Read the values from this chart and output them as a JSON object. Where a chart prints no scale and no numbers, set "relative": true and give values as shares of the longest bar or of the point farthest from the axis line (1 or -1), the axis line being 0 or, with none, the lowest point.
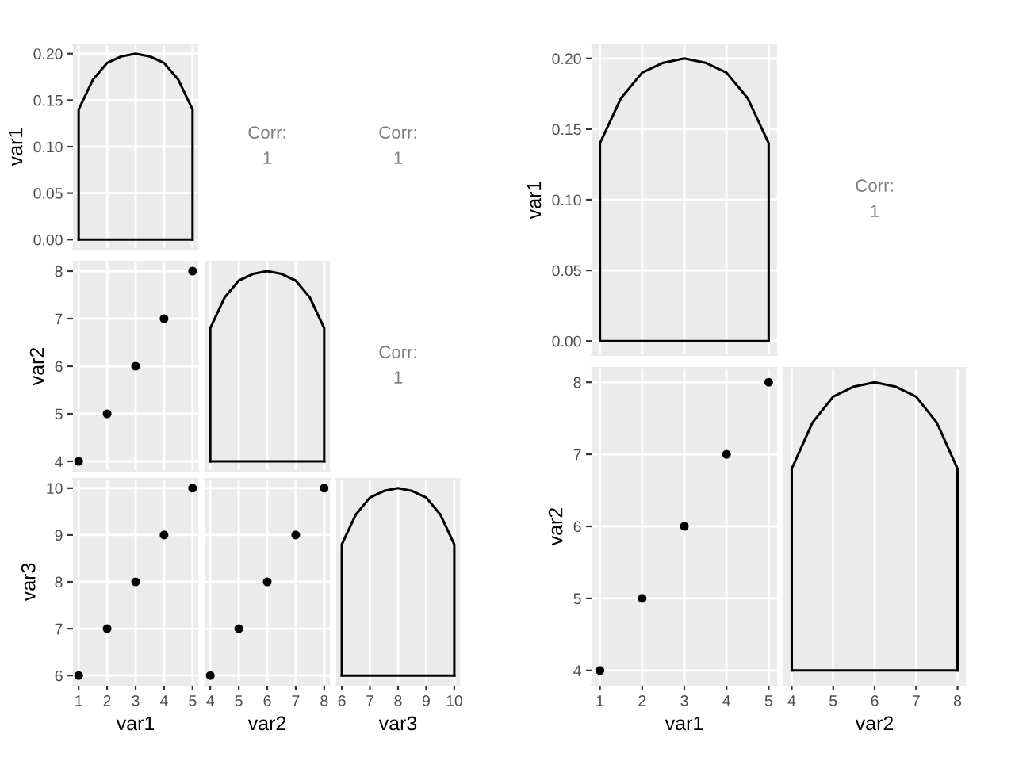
{
  "chart_data": [
    {
      "type": "line",
      "ylabel": "var1",
      "xlim": [
        0.8,
        5.2
      ],
      "xticks": [
        1,
        2,
        3,
        4,
        5
      ],
      "ylim": [
        -0.01,
        0.21
      ],
      "yticks": [
        {
          "value": 0,
          "label": "0.00"
        },
        {
          "value": 0.05,
          "label": "0.05"
        },
        {
          "value": 0.1,
          "label": "0.10"
        },
        {
          "value": 0.15,
          "label": "0.15"
        },
        {
          "value": 0.2,
          "label": "0.20"
        }
      ],
      "tick_labels": "y",
      "grid": true,
      "series": [
        {
          "color": "#000000",
          "x": [
            1,
            1,
            1.5,
            2,
            2.5,
            3,
            3.5,
            4,
            4.5,
            5,
            5
          ],
          "values": [
            0,
            0.14,
            0.172,
            0.19,
            0.197,
            0.2,
            0.197,
            0.19,
            0.172,
            0.14,
            0
          ]
        },
        {
          "color": "#000000",
          "x": [
            1,
            5
          ],
          "values": [
            0,
            0
          ]
        }
      ]
    },
    {
      "type": "other",
      "annotations": [
        "Corr:",
        "1"
      ]
    },
    {
      "type": "other",
      "annotations": [
        "Corr:",
        "1"
      ]
    },
    {
      "type": "scatter",
      "ylabel": "var2",
      "xlim": [
        0.8,
        5.2
      ],
      "xticks": [
        1,
        2,
        3,
        4,
        5
      ],
      "ylim": [
        3.8,
        8.2
      ],
      "yticks": [
        4,
        5,
        6,
        7,
        8
      ],
      "tick_labels": "y",
      "grid": true,
      "marker": "circle",
      "series": [
        {
          "color": "#000000",
          "x": [
            1,
            2,
            3,
            4,
            5
          ],
          "values": [
            4,
            5,
            6,
            7,
            8
          ]
        }
      ]
    },
    {
      "type": "line",
      "relative": true,
      "xlim": [
        3.8,
        8.2
      ],
      "xticks": [
        4,
        5,
        6,
        7,
        8
      ],
      "tick_labels": false,
      "grid": true,
      "series": [
        {
          "color": "#000000",
          "x": [
            4,
            4,
            4.5,
            5,
            5.5,
            6,
            6.5,
            7,
            7.5,
            8,
            8
          ],
          "values": [
            0,
            0.7,
            0.86,
            0.95,
            0.985,
            1,
            0.985,
            0.95,
            0.86,
            0.7,
            0
          ]
        },
        {
          "color": "#000000",
          "x": [
            4,
            8
          ],
          "values": [
            0,
            0
          ]
        }
      ]
    },
    {
      "type": "other",
      "annotations": [
        "Corr:",
        "1"
      ]
    },
    {
      "type": "scatter",
      "xlabel": "var1",
      "ylabel": "var3",
      "xlim": [
        0.8,
        5.2
      ],
      "xticks": [
        1,
        2,
        3,
        4,
        5
      ],
      "ylim": [
        5.8,
        10.2
      ],
      "yticks": [
        6,
        7,
        8,
        9,
        10
      ],
      "grid": true,
      "marker": "circle",
      "series": [
        {
          "color": "#000000",
          "x": [
            1,
            2,
            3,
            4,
            5
          ],
          "values": [
            6,
            7,
            8,
            9,
            10
          ]
        }
      ]
    },
    {
      "type": "scatter",
      "xlabel": "var2",
      "xlim": [
        3.8,
        8.2
      ],
      "xticks": [
        4,
        5,
        6,
        7,
        8
      ],
      "ylim": [
        5.8,
        10.2
      ],
      "yticks": [
        6,
        7,
        8,
        9,
        10
      ],
      "tick_labels": "x",
      "grid": true,
      "marker": "circle",
      "series": [
        {
          "color": "#000000",
          "x": [
            4,
            5,
            6,
            7,
            8
          ],
          "values": [
            6,
            7,
            8,
            9,
            10
          ]
        }
      ]
    },
    {
      "type": "line",
      "relative": true,
      "xlabel": "var3",
      "xlim": [
        5.8,
        10.2
      ],
      "xticks": [
        6,
        7,
        8,
        9,
        10
      ],
      "tick_labels": "x",
      "grid": true,
      "series": [
        {
          "color": "#000000",
          "x": [
            6,
            6,
            6.5,
            7,
            7.5,
            8,
            8.5,
            9,
            9.5,
            10,
            10
          ],
          "values": [
            0,
            0.7,
            0.86,
            0.95,
            0.985,
            1,
            0.985,
            0.95,
            0.86,
            0.7,
            0
          ]
        },
        {
          "color": "#000000",
          "x": [
            6,
            10
          ],
          "values": [
            0,
            0
          ]
        }
      ]
    },
    {
      "type": "line",
      "ylabel": "var1",
      "xlim": [
        0.8,
        5.2
      ],
      "xticks": [
        1,
        2,
        3,
        4,
        5
      ],
      "ylim": [
        -0.01,
        0.21
      ],
      "yticks": [
        {
          "value": 0,
          "label": "0.00"
        },
        {
          "value": 0.05,
          "label": "0.05"
        },
        {
          "value": 0.1,
          "label": "0.10"
        },
        {
          "value": 0.15,
          "label": "0.15"
        },
        {
          "value": 0.2,
          "label": "0.20"
        }
      ],
      "tick_labels": "y",
      "grid": true,
      "series": [
        {
          "color": "#000000",
          "x": [
            1,
            1,
            1.5,
            2,
            2.5,
            3,
            3.5,
            4,
            4.5,
            5,
            5
          ],
          "values": [
            0,
            0.14,
            0.172,
            0.19,
            0.197,
            0.2,
            0.197,
            0.19,
            0.172,
            0.14,
            0
          ]
        },
        {
          "color": "#000000",
          "x": [
            1,
            5
          ],
          "values": [
            0,
            0
          ]
        }
      ]
    },
    {
      "type": "other",
      "annotations": [
        "Corr:",
        "1"
      ]
    },
    {
      "type": "scatter",
      "xlabel": "var1",
      "ylabel": "var2",
      "xlim": [
        0.8,
        5.2
      ],
      "xticks": [
        1,
        2,
        3,
        4,
        5
      ],
      "ylim": [
        3.8,
        8.2
      ],
      "yticks": [
        4,
        5,
        6,
        7,
        8
      ],
      "grid": true,
      "marker": "circle",
      "series": [
        {
          "color": "#000000",
          "x": [
            1,
            2,
            3,
            4,
            5
          ],
          "values": [
            4,
            5,
            6,
            7,
            8
          ]
        }
      ]
    },
    {
      "type": "line",
      "relative": true,
      "xlabel": "var2",
      "xlim": [
        3.8,
        8.2
      ],
      "xticks": [
        4,
        5,
        6,
        7,
        8
      ],
      "tick_labels": "x",
      "grid": true,
      "series": [
        {
          "color": "#000000",
          "x": [
            4,
            4,
            4.5,
            5,
            5.5,
            6,
            6.5,
            7,
            7.5,
            8,
            8
          ],
          "values": [
            0,
            0.7,
            0.86,
            0.95,
            0.985,
            1,
            0.985,
            0.95,
            0.86,
            0.7,
            0
          ]
        },
        {
          "color": "#000000",
          "x": [
            4,
            8
          ],
          "values": [
            0,
            0
          ]
        }
      ]
    }
  ]
}
